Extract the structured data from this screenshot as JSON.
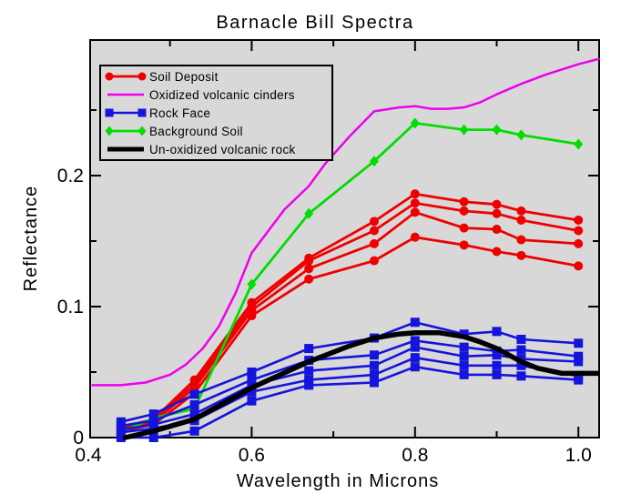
{
  "page": {
    "background": "#ffffff"
  },
  "chart_data": {
    "type": "line",
    "title": "Barnacle Bill Spectra",
    "xlabel": "Wavelength in Microns",
    "ylabel": "Reflectance",
    "xlim": [
      0.4,
      1.025
    ],
    "ylim": [
      0.0,
      0.3035
    ],
    "grid": false,
    "plot_bg": "#d8d8d8",
    "frame_color": "#000000",
    "legend_position": "upper-left",
    "x_ticks": {
      "major": [
        0.6,
        0.8,
        1.0
      ],
      "minor": [
        0.5,
        0.7,
        0.9
      ],
      "labels": [
        {
          "value": 0.4,
          "text": "0.4"
        },
        {
          "value": 0.6,
          "text": "0.6"
        },
        {
          "value": 0.8,
          "text": "0.8"
        },
        {
          "value": 1.0,
          "text": "1.0"
        }
      ]
    },
    "y_ticks": {
      "major": [
        0.1,
        0.2
      ],
      "minor": [
        0.05,
        0.15,
        0.25
      ],
      "labels": [
        {
          "value": 0.0,
          "text": "0"
        },
        {
          "value": 0.1,
          "text": "0.1"
        },
        {
          "value": 0.2,
          "text": "0.2"
        }
      ]
    },
    "wavelengths_microns": [
      0.44,
      0.48,
      0.53,
      0.6,
      0.67,
      0.75,
      0.8,
      0.86,
      0.9,
      0.93,
      1.0
    ],
    "series": [
      {
        "name": "Soil Deposit",
        "color": "#ee0000",
        "marker": "circle",
        "width": 2.8,
        "lines": [
          {
            "y": [
              0.008,
              0.014,
              0.044,
              0.103,
              0.137,
              0.165,
              0.186,
              0.18,
              0.178,
              0.173,
              0.166
            ]
          },
          {
            "y": [
              0.007,
              0.013,
              0.041,
              0.1,
              0.135,
              0.158,
              0.179,
              0.173,
              0.171,
              0.166,
              0.158
            ]
          },
          {
            "y": [
              0.006,
              0.012,
              0.038,
              0.097,
              0.129,
              0.148,
              0.172,
              0.16,
              0.159,
              0.151,
              0.148
            ]
          },
          {
            "y": [
              0.005,
              0.01,
              0.034,
              0.093,
              0.121,
              0.135,
              0.153,
              0.147,
              0.142,
              0.139,
              0.131
            ]
          }
        ]
      },
      {
        "name": "Oxidized volcanic cinders",
        "color": "#ee00ee",
        "marker": "none",
        "width": 2.5,
        "lines": [
          {
            "x": [
              0.405,
              0.44,
              0.47,
              0.5,
              0.52,
              0.54,
              0.56,
              0.58,
              0.6,
              0.64,
              0.67,
              0.69,
              0.72,
              0.75,
              0.78,
              0.8,
              0.82,
              0.84,
              0.86,
              0.88,
              0.9,
              0.93,
              0.96,
              1.0,
              1.025
            ],
            "y": [
              0.04,
              0.04,
              0.042,
              0.048,
              0.056,
              0.068,
              0.085,
              0.11,
              0.141,
              0.174,
              0.192,
              0.209,
              0.23,
              0.249,
              0.252,
              0.253,
              0.251,
              0.251,
              0.252,
              0.256,
              0.262,
              0.27,
              0.277,
              0.285,
              0.289
            ]
          }
        ]
      },
      {
        "name": "Rock Face",
        "color": "#1414dc",
        "marker": "square",
        "width": 2.6,
        "lines": [
          {
            "y": [
              0.012,
              0.018,
              0.033,
              0.05,
              0.068,
              0.076,
              0.088,
              0.079,
              0.081,
              0.075,
              0.072
            ]
          },
          {
            "y": [
              0.009,
              0.013,
              0.025,
              0.044,
              0.059,
              0.063,
              0.074,
              0.069,
              0.066,
              0.067,
              0.062
            ]
          },
          {
            "y": [
              0.006,
              0.01,
              0.018,
              0.04,
              0.051,
              0.055,
              0.069,
              0.062,
              0.063,
              0.06,
              0.058
            ]
          },
          {
            "y": [
              0.004,
              0.007,
              0.013,
              0.035,
              0.044,
              0.048,
              0.061,
              0.055,
              0.055,
              0.055,
              0.047
            ]
          },
          {
            "y": [
              0.0,
              0.0,
              0.005,
              0.028,
              0.04,
              0.042,
              0.054,
              0.048,
              0.048,
              0.047,
              0.044
            ]
          }
        ]
      },
      {
        "name": "Background Soil",
        "color": "#00dd00",
        "marker": "diamond",
        "width": 2.8,
        "lines": [
          {
            "y": [
              0.004,
              0.015,
              0.022,
              0.117,
              0.171,
              0.211,
              0.24,
              0.235,
              0.235,
              0.231,
              0.224
            ]
          }
        ]
      },
      {
        "name": "Un-oxidized volcanic rock",
        "color": "#000000",
        "marker": "none",
        "width": 5.5,
        "lines": [
          {
            "x": [
              0.445,
              0.48,
              0.53,
              0.6,
              0.67,
              0.72,
              0.75,
              0.78,
              0.8,
              0.83,
              0.86,
              0.88,
              0.9,
              0.93,
              0.95,
              0.965,
              0.98,
              1.0,
              1.025
            ],
            "y": [
              0.0,
              0.005,
              0.014,
              0.038,
              0.058,
              0.07,
              0.076,
              0.079,
              0.08,
              0.08,
              0.077,
              0.073,
              0.068,
              0.058,
              0.053,
              0.051,
              0.049,
              0.049,
              0.049
            ]
          }
        ]
      }
    ]
  }
}
